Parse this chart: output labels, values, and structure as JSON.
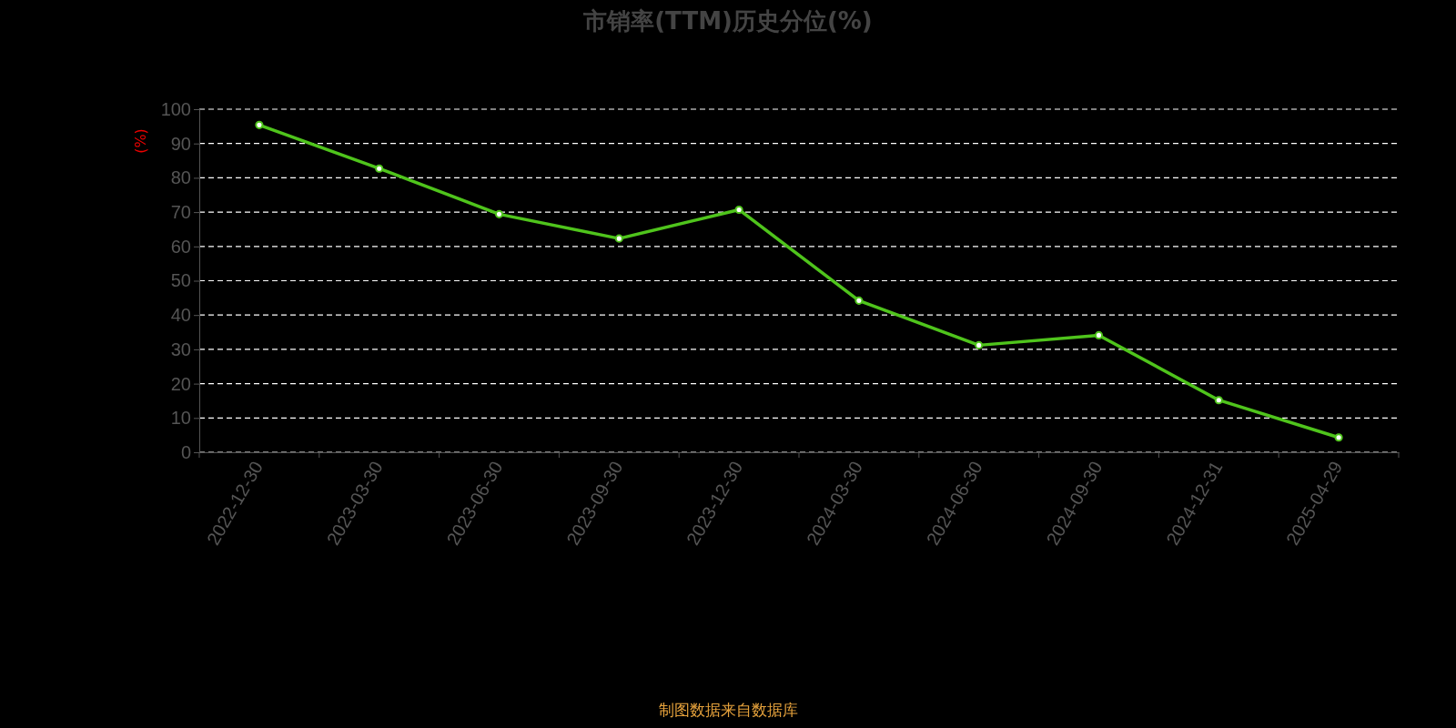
{
  "chart_data": {
    "type": "line",
    "title": "市销率(TTM)历史分位(%)",
    "ylabel": "(%)",
    "categories": [
      "2022-12-30",
      "2023-03-30",
      "2023-06-30",
      "2023-09-30",
      "2023-12-30",
      "2024-03-30",
      "2024-06-30",
      "2024-09-30",
      "2024-12-31",
      "2025-04-29"
    ],
    "series": [
      {
        "color": "#4fc41c",
        "values": [
          95.4,
          82.7,
          69.4,
          62.3,
          70.7,
          44.2,
          31.2,
          34.1,
          15.2,
          4.3
        ]
      }
    ],
    "ylim": [
      0,
      100
    ],
    "yticks": [
      0,
      10,
      20,
      30,
      40,
      50,
      60,
      70,
      80,
      90,
      100
    ],
    "grid": "y",
    "marker": "circle",
    "line_style": "solid",
    "annotations": [
      "制图数据来自数据库"
    ]
  }
}
